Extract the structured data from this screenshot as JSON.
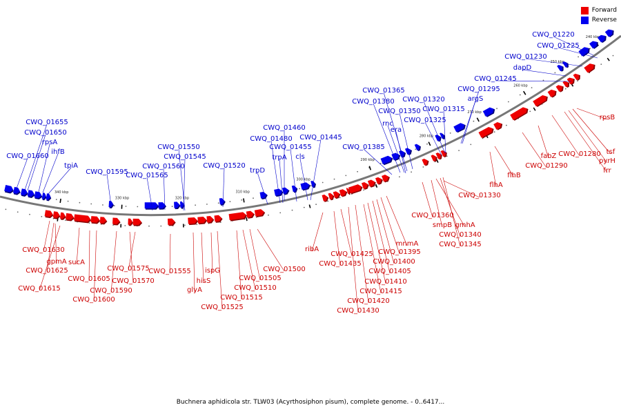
{
  "legend": {
    "items": [
      {
        "label": "Forward",
        "color": "#ee0000"
      },
      {
        "label": "Reverse",
        "color": "#0000ee"
      }
    ]
  },
  "caption": "Buchnera aphidicola str. TLW03 (Acyrthosiphon pisum), complete genome. - 0..6417...",
  "ticks": [
    "240 kbp",
    "250 kbp",
    "260 kbp",
    "270 kbp",
    "280 kbp",
    "290 kbp",
    "300 kbp",
    "310 kbp",
    "320 kbp",
    "330 kbp",
    "340 kbp"
  ],
  "reverse_labels": [
    "CWQ_01220",
    "CWQ_01225",
    "CWQ_01230",
    "dapD",
    "CWQ_01245",
    "CWQ_01295",
    "argS",
    "CWQ_01320",
    "CWQ_01315",
    "CWQ_01325",
    "CWQ_01365",
    "CWQ_01380",
    "CWQ_01350",
    "rnc",
    "era",
    "CWQ_01385",
    "CWQ_01460",
    "CWQ_01480",
    "CWQ_01455",
    "trpA",
    "cls",
    "CWQ_01445",
    "trpD",
    "CWQ_01520",
    "CWQ_01550",
    "CWQ_01545",
    "CWQ_01560",
    "CWQ_01565",
    "CWQ_01595",
    "CWQ_01655",
    "CWQ_01650",
    "rpsA",
    "ihfB",
    "CWQ_01660",
    "tpiA"
  ],
  "forward_labels": [
    "rpsB",
    "tsf",
    "pyrH",
    "frr",
    "CWQ_01280",
    "fabZ",
    "CWQ_01290",
    "flhB",
    "flhA",
    "CWQ_01330",
    "CWQ_01360",
    "smpB",
    "gmhA",
    "CWQ_01340",
    "CWQ_01345",
    "mnmA",
    "CWQ_01395",
    "CWQ_01400",
    "CWQ_01405",
    "CWQ_01410",
    "CWQ_01415",
    "CWQ_01420",
    "CWQ_01430",
    "CWQ_01425",
    "CWQ_01435",
    "ribA",
    "CWQ_01500",
    "CWQ_01505",
    "CWQ_01510",
    "CWQ_01515",
    "CWQ_01525",
    "ispG",
    "hisS",
    "glyA",
    "CWQ_01555",
    "CWQ_01575",
    "CWQ_01570",
    "CWQ_01590",
    "CWQ_01600",
    "CWQ_01605",
    "sucA",
    "CWQ_01615",
    "CWQ_01625",
    "gpmA",
    "CWQ_01630"
  ]
}
